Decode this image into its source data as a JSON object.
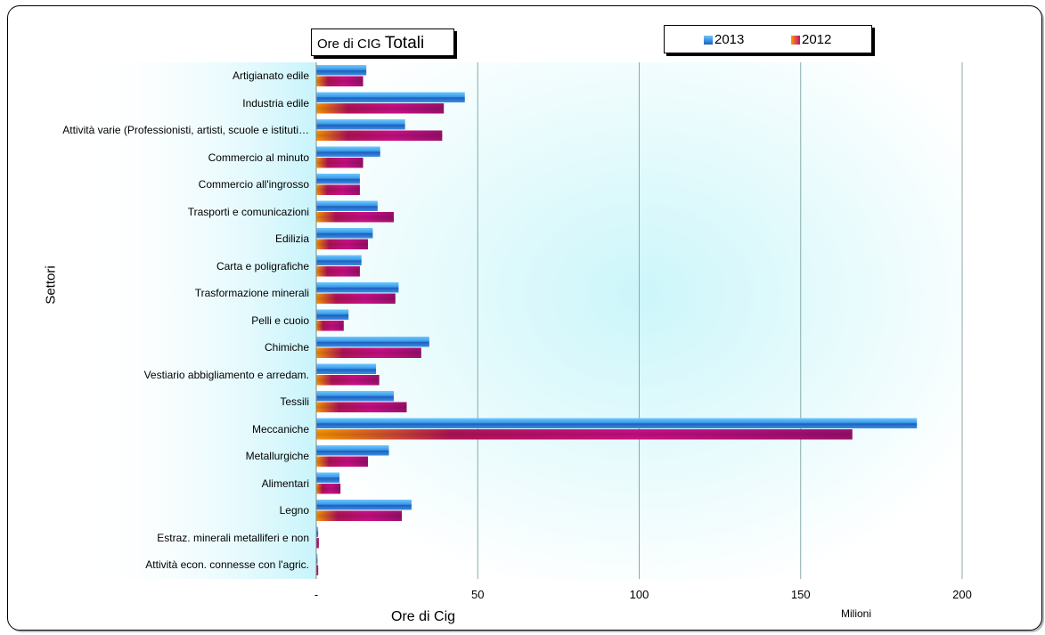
{
  "chart_data": {
    "type": "bar",
    "orientation": "horizontal",
    "title_small": "Ore di CIG",
    "title_big": "Totali",
    "xlabel": "Ore di Cig",
    "ylabel": "Settori",
    "unit_label": "Milioni",
    "xlim": [
      0,
      200
    ],
    "x_tick_labels": [
      "-",
      "50",
      "100",
      "150",
      "200"
    ],
    "x_tick_values": [
      0,
      50,
      100,
      150,
      200
    ],
    "grid": "vertical",
    "legend_position": "top-right",
    "categories": [
      "Artigianato edile",
      "Industria edile",
      "Attività varie (Professionisti, artisti, scuole e istituti…",
      "Commercio al minuto",
      "Commercio all'ingrosso",
      "Trasporti e comunicazioni",
      "Edilizia",
      "Carta e poligrafiche",
      "Trasformazione minerali",
      "Pelli e cuoio",
      "Chimiche",
      "Vestiario abbigliamento e arredam.",
      "Tessili",
      "Meccaniche",
      "Metallurgiche",
      "Alimentari",
      "Legno",
      "Estraz. minerali metalliferi e non",
      "Attività econ. connesse con l'agric."
    ],
    "series": [
      {
        "name": "2013",
        "color": "#2f8fdf",
        "values": [
          15.5,
          46,
          27.5,
          19.8,
          13.5,
          19,
          17.5,
          14,
          25.5,
          10,
          35,
          18.5,
          24,
          186,
          22.5,
          7.2,
          29.5,
          0.6,
          0.4
        ]
      },
      {
        "name": "2012",
        "color": "#c0107a",
        "values": [
          14.5,
          39.5,
          39,
          14.5,
          13.5,
          24,
          16,
          13.5,
          24.5,
          8.5,
          32.5,
          19.5,
          28,
          166,
          16,
          7.5,
          26.5,
          0.8,
          0.6
        ]
      }
    ]
  }
}
